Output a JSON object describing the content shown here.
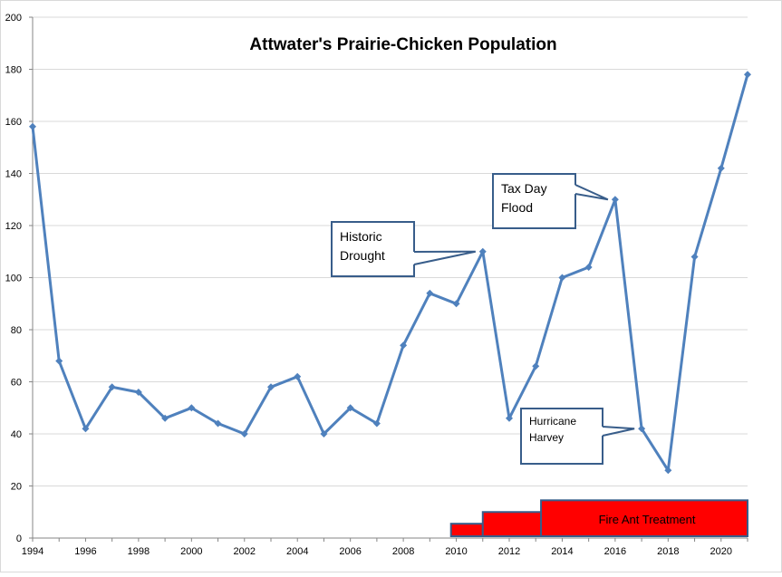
{
  "chart_data": {
    "type": "line",
    "title": "Attwater's Prairie-Chicken Population",
    "xlabel": "",
    "ylabel": "",
    "xlim": [
      1994,
      2021
    ],
    "ylim": [
      0,
      200
    ],
    "x_ticks": [
      "1994",
      "1996",
      "1998",
      "2000",
      "2002",
      "2004",
      "2006",
      "2008",
      "2010",
      "2012",
      "2014",
      "2016",
      "2018",
      "2020"
    ],
    "y_ticks": [
      "0",
      "20",
      "40",
      "60",
      "80",
      "100",
      "120",
      "140",
      "160",
      "180",
      "200"
    ],
    "grid": true,
    "legend": "none",
    "series": [
      {
        "color": "#4f81bd",
        "x": [
          1994,
          1995,
          1996,
          1997,
          1998,
          1999,
          2000,
          2001,
          2002,
          2003,
          2004,
          2005,
          2006,
          2007,
          2008,
          2009,
          2010,
          2011,
          2012,
          2013,
          2014,
          2015,
          2016,
          2017,
          2018,
          2019,
          2020,
          2021
        ],
        "y": [
          158,
          68,
          42,
          58,
          56,
          46,
          50,
          44,
          40,
          58,
          62,
          40,
          50,
          44,
          74,
          94,
          90,
          110,
          46,
          66,
          100,
          104,
          130,
          42,
          26,
          108,
          142,
          178
        ]
      }
    ],
    "annotations": [
      {
        "text_lines": [
          "Historic",
          "Drought"
        ],
        "points_to": [
          2011,
          110
        ]
      },
      {
        "text_lines": [
          "Tax Day",
          "Flood"
        ],
        "points_to": [
          2016,
          130
        ]
      },
      {
        "text_lines": [
          "Hurricane",
          "Harvey"
        ],
        "points_to": [
          2017,
          42
        ]
      }
    ],
    "treatment_bands": [
      {
        "x_start": 2009.8,
        "x_end": 2011.0,
        "height": 5.5
      },
      {
        "x_start": 2011.0,
        "x_end": 2013.2,
        "height": 10
      },
      {
        "x_start": 2013.2,
        "x_end": 2021.0,
        "height": 14.5,
        "label": "Fire Ant Treatment"
      }
    ],
    "band_color": "#ff0000",
    "band_border_color": "#385d8a"
  }
}
